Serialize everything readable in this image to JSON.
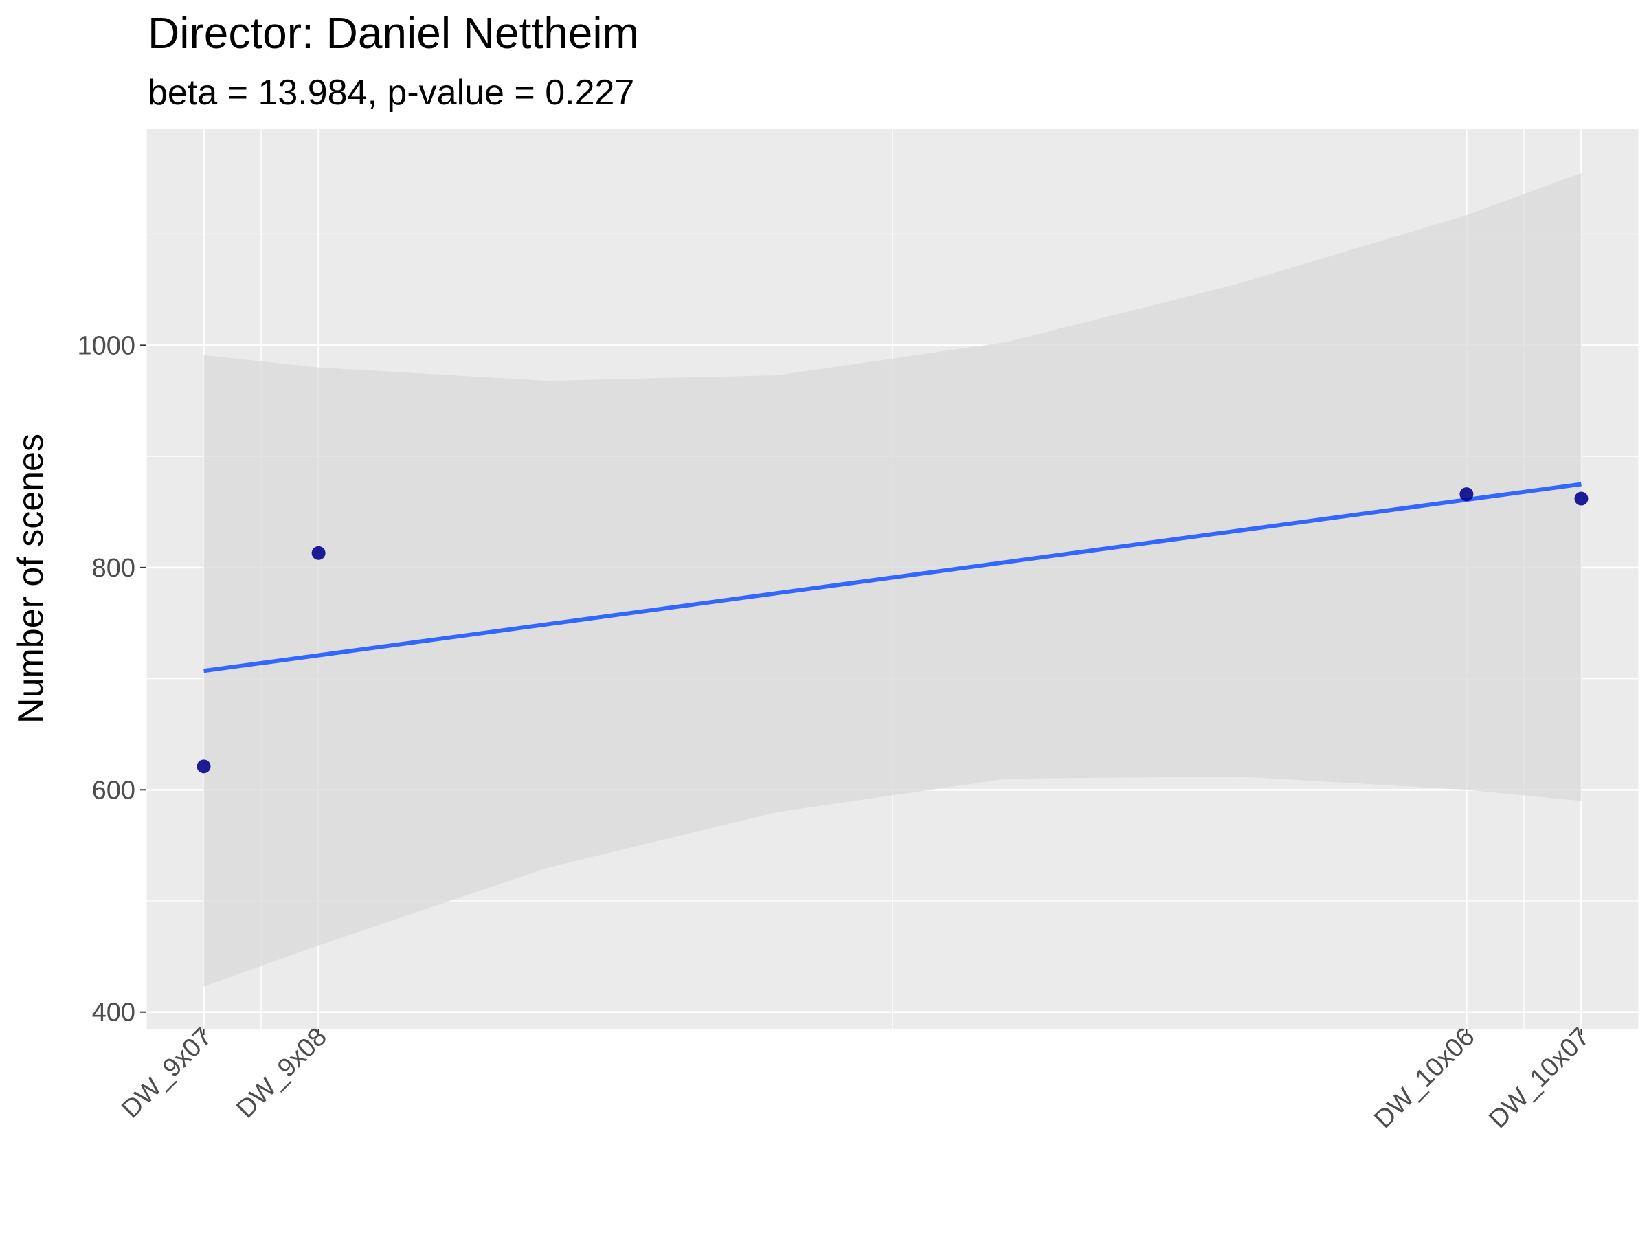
{
  "chart_data": {
    "type": "scatter",
    "title": "Director: Daniel Nettheim",
    "subtitle": "beta = 13.984, p-value = 0.227",
    "xlabel": "",
    "ylabel": "Number of scenes",
    "x_axis": {
      "type": "episode-index",
      "ticks": [
        {
          "label": "DW_9x07",
          "x": 7
        },
        {
          "label": "DW_9x08",
          "x": 8
        },
        {
          "label": "DW_10x06",
          "x": 18
        },
        {
          "label": "DW_10x07",
          "x": 19
        }
      ],
      "xlim": [
        6.5,
        19.5
      ]
    },
    "ylim": [
      385,
      1195
    ],
    "y_ticks": [
      400,
      600,
      800,
      1000
    ],
    "grid": true,
    "points": [
      {
        "label": "DW_9x07",
        "x": 7,
        "y": 621
      },
      {
        "label": "DW_9x08",
        "x": 8,
        "y": 813
      },
      {
        "label": "DW_10x06",
        "x": 18,
        "y": 866
      },
      {
        "label": "DW_10x07",
        "x": 19,
        "y": 862
      }
    ],
    "fit_line": {
      "x": [
        7,
        19
      ],
      "y": [
        707,
        875
      ]
    },
    "confidence_band": {
      "x": [
        7,
        8,
        10,
        12,
        14,
        16,
        18,
        19
      ],
      "upper": [
        991,
        980,
        968,
        973,
        1003,
        1055,
        1117,
        1155
      ],
      "lower": [
        423,
        460,
        530,
        580,
        610,
        612,
        600,
        590
      ]
    },
    "colors": {
      "panel_background": "#ebebeb",
      "grid_major": "#ffffff",
      "point": "#00008b",
      "fit_line": "#3366ff",
      "band": "#d9d9d9"
    }
  }
}
